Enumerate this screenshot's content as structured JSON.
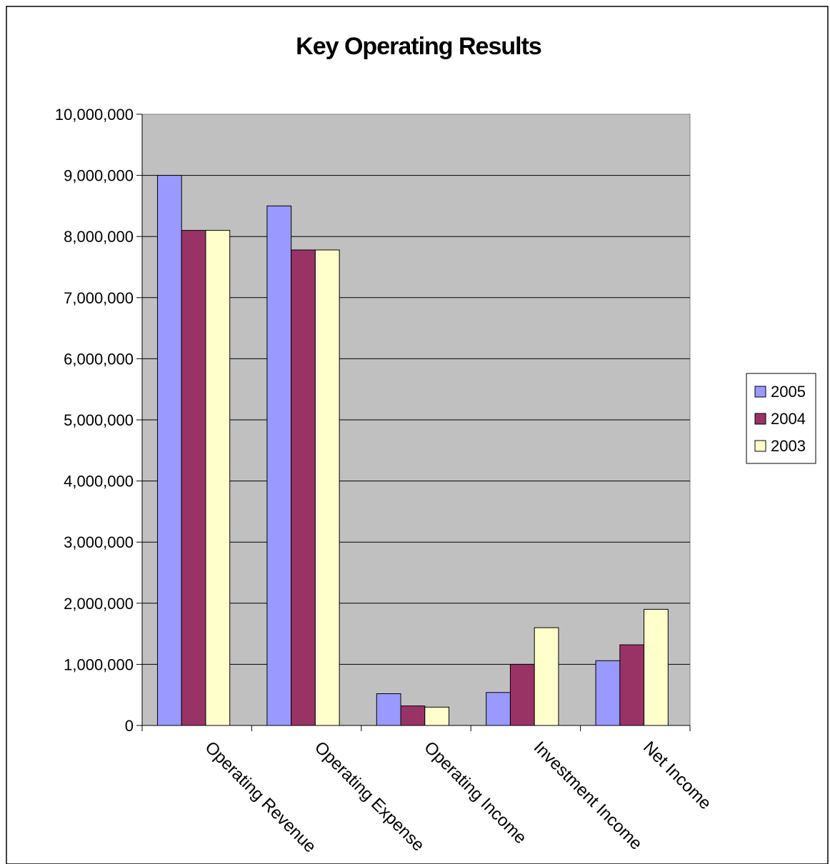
{
  "chart_data": {
    "type": "bar",
    "title": "Key Operating Results",
    "categories": [
      "Operating Revenue",
      "Operating Expense",
      "Operating Income",
      "Investment Income",
      "Net Income"
    ],
    "series": [
      {
        "name": "2005",
        "color": "#9999ff",
        "values": [
          9000000,
          8500000,
          520000,
          540000,
          1060000
        ]
      },
      {
        "name": "2004",
        "color": "#993366",
        "values": [
          8100000,
          7780000,
          320000,
          1000000,
          1320000
        ]
      },
      {
        "name": "2003",
        "color": "#ffffcc",
        "values": [
          8100000,
          7780000,
          300000,
          1600000,
          1900000
        ]
      }
    ],
    "ylim": [
      0,
      10000000
    ],
    "yticks": [
      "0",
      "1,000,000",
      "2,000,000",
      "3,000,000",
      "4,000,000",
      "5,000,000",
      "6,000,000",
      "7,000,000",
      "8,000,000",
      "9,000,000",
      "10,000,000"
    ],
    "grid": true,
    "legend": "right",
    "plot_background": "#c0c0c0"
  }
}
